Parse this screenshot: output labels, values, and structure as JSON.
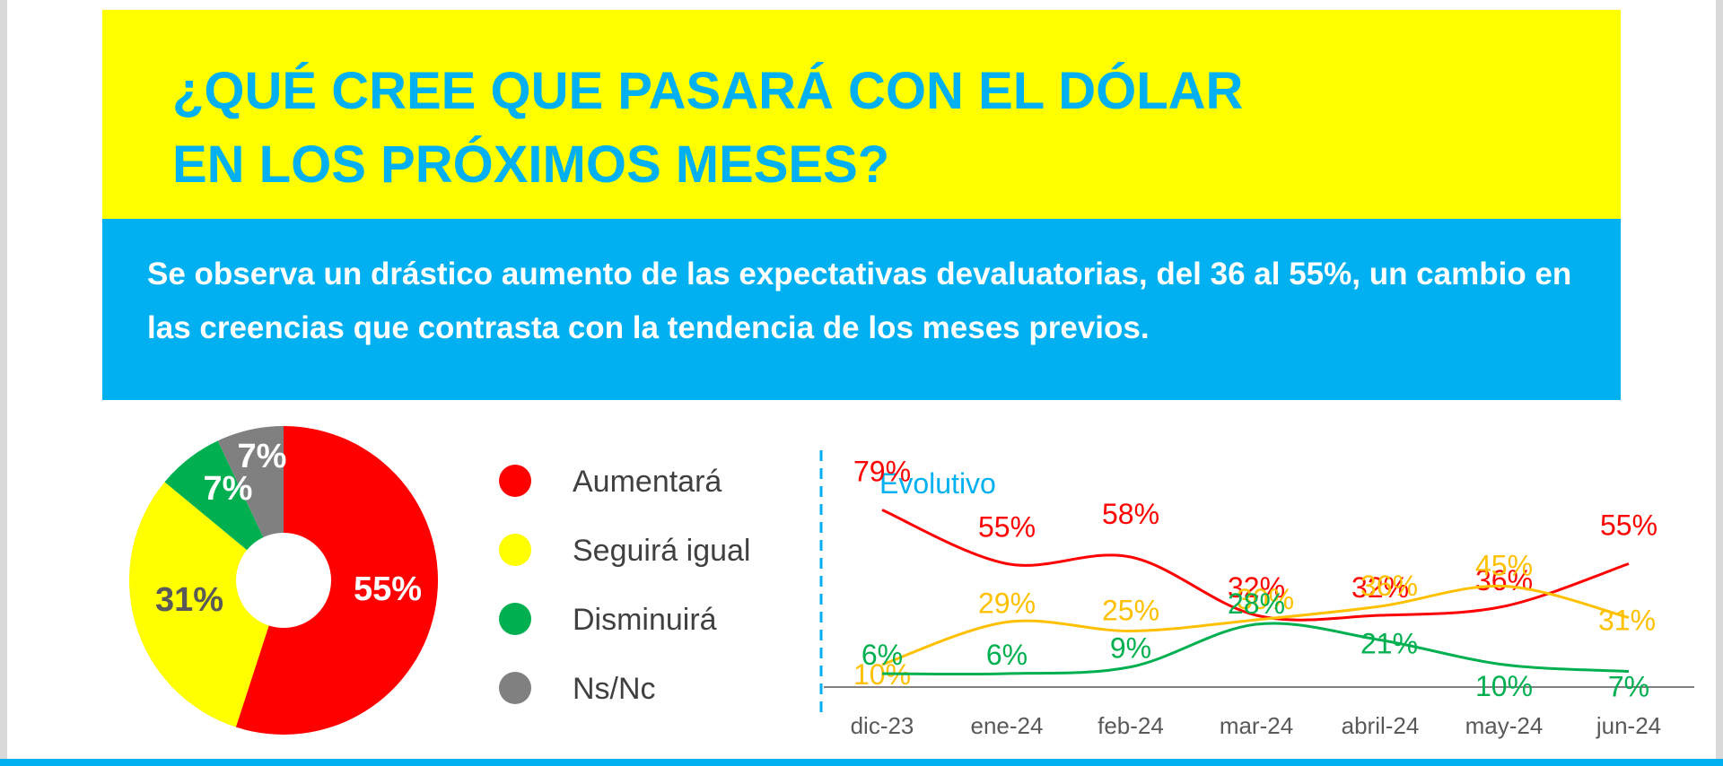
{
  "header": {
    "title_line_1": "¿QUÉ CREE QUE PASARÁ CON EL DÓLAR",
    "title_line_2": "EN LOS PRÓXIMOS MESES?",
    "subtitle": "Se observa un drástico aumento de las expectativas devaluatorias, del 36 al 55%, un cambio en las creencias que contrasta con la tendencia de los meses previos."
  },
  "chart_data": [
    {
      "type": "pie",
      "labels": [
        "Aumentará",
        "Seguirá igual",
        "Disminuirá",
        "Ns/Nc"
      ],
      "values": [
        55,
        31,
        7,
        7
      ],
      "value_labels": [
        "55%",
        "31%",
        "7%",
        "7%"
      ],
      "colors": [
        "#ff0000",
        "#ffff00",
        "#00b050",
        "#808080"
      ],
      "label_colors": [
        "#ffffff",
        "#595959",
        "#ffffff",
        "#ffffff"
      ],
      "donut_hole": true,
      "legend_placement": "right"
    },
    {
      "type": "line",
      "title": "Evolutivo",
      "categories": [
        "dic-23",
        "ene-24",
        "feb-24",
        "mar-24",
        "abril-24",
        "may-24",
        "jun-24"
      ],
      "series": [
        {
          "name": "Aumentará",
          "color": "#ff0000",
          "values": [
            79,
            55,
            58,
            32,
            32,
            36,
            55
          ],
          "labels": [
            "79%",
            "55%",
            "58%",
            "32%",
            "32%",
            "36%",
            "55%"
          ]
        },
        {
          "name": "Seguirá igual",
          "color": "#ffc000",
          "values": [
            10,
            29,
            25,
            30,
            36,
            45,
            31
          ],
          "labels": [
            "10%",
            "29%",
            "25%",
            "30%",
            "36%",
            "45%",
            "31%"
          ]
        },
        {
          "name": "Disminuirá",
          "color": "#00b050",
          "values": [
            6,
            6,
            9,
            28,
            21,
            10,
            7
          ],
          "labels": [
            "6%",
            "6%",
            "9%",
            "28%",
            "21%",
            "10%",
            "7%"
          ]
        }
      ],
      "axis_color": "#808080",
      "divider_color": "#00b0f0",
      "title_color": "#00b0f0"
    }
  ]
}
